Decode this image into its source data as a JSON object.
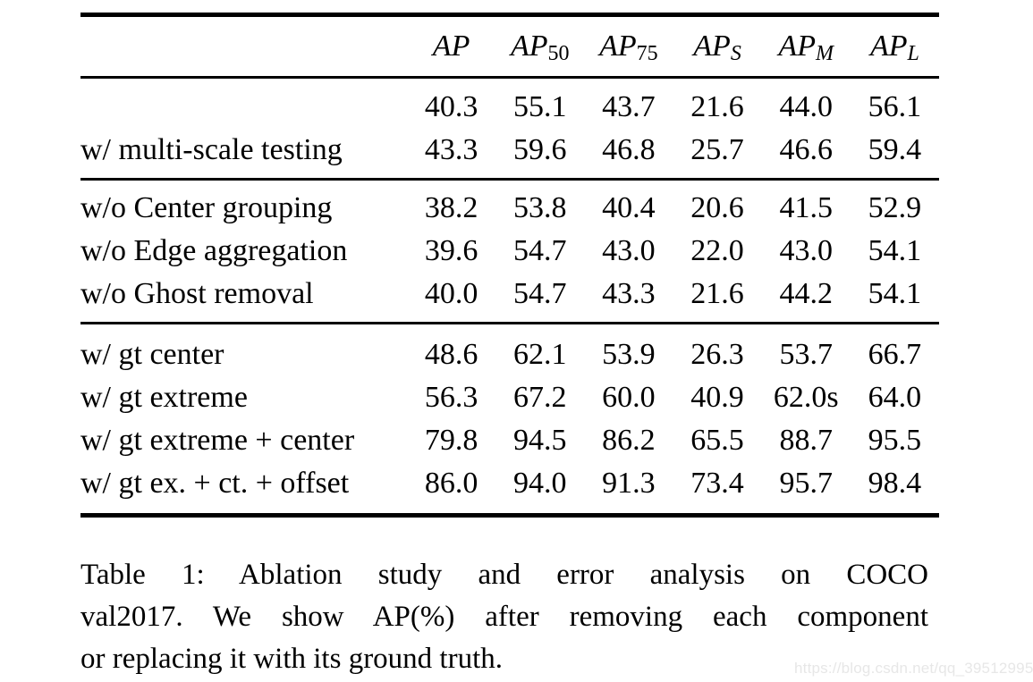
{
  "colors": {
    "text": "#000000",
    "rule": "#000000",
    "watermark": "#e7e7e7",
    "background": "#ffffff"
  },
  "table": {
    "columns": [
      {
        "base": "AP",
        "sub": ""
      },
      {
        "base": "AP",
        "sub": "50"
      },
      {
        "base": "AP",
        "sub": "75"
      },
      {
        "base": "AP",
        "sub": "S"
      },
      {
        "base": "AP",
        "sub": "M"
      },
      {
        "base": "AP",
        "sub": "L"
      }
    ],
    "groups": [
      {
        "rows": [
          {
            "label": "",
            "values": [
              "40.3",
              "55.1",
              "43.7",
              "21.6",
              "44.0",
              "56.1"
            ]
          },
          {
            "label": "w/ multi-scale testing",
            "values": [
              "43.3",
              "59.6",
              "46.8",
              "25.7",
              "46.6",
              "59.4"
            ]
          }
        ]
      },
      {
        "rows": [
          {
            "label": "w/o Center grouping",
            "values": [
              "38.2",
              "53.8",
              "40.4",
              "20.6",
              "41.5",
              "52.9"
            ]
          },
          {
            "label": "w/o Edge aggregation",
            "values": [
              "39.6",
              "54.7",
              "43.0",
              "22.0",
              "43.0",
              "54.1"
            ]
          },
          {
            "label": "w/o Ghost removal",
            "values": [
              "40.0",
              "54.7",
              "43.3",
              "21.6",
              "44.2",
              "54.1"
            ]
          }
        ]
      },
      {
        "rows": [
          {
            "label": "w/ gt center",
            "values": [
              "48.6",
              "62.1",
              "53.9",
              "26.3",
              "53.7",
              "66.7"
            ]
          },
          {
            "label": "w/ gt extreme",
            "values": [
              "56.3",
              "67.2",
              "60.0",
              "40.9",
              "62.0s",
              "64.0"
            ]
          },
          {
            "label": "w/ gt extreme + center",
            "values": [
              "79.8",
              "94.5",
              "86.2",
              "65.5",
              "88.7",
              "95.5"
            ]
          },
          {
            "label": "w/ gt ex. + ct. + offset",
            "values": [
              "86.0",
              "94.0",
              "91.3",
              "73.4",
              "95.7",
              "98.4"
            ]
          }
        ]
      }
    ]
  },
  "caption": {
    "line1": "Table 1: Ablation study and error analysis on COCO",
    "line2": "val2017. We show AP(%) after removing each component",
    "line3": "or replacing it with its ground truth."
  },
  "watermark": "https://blog.csdn.net/qq_39512995"
}
